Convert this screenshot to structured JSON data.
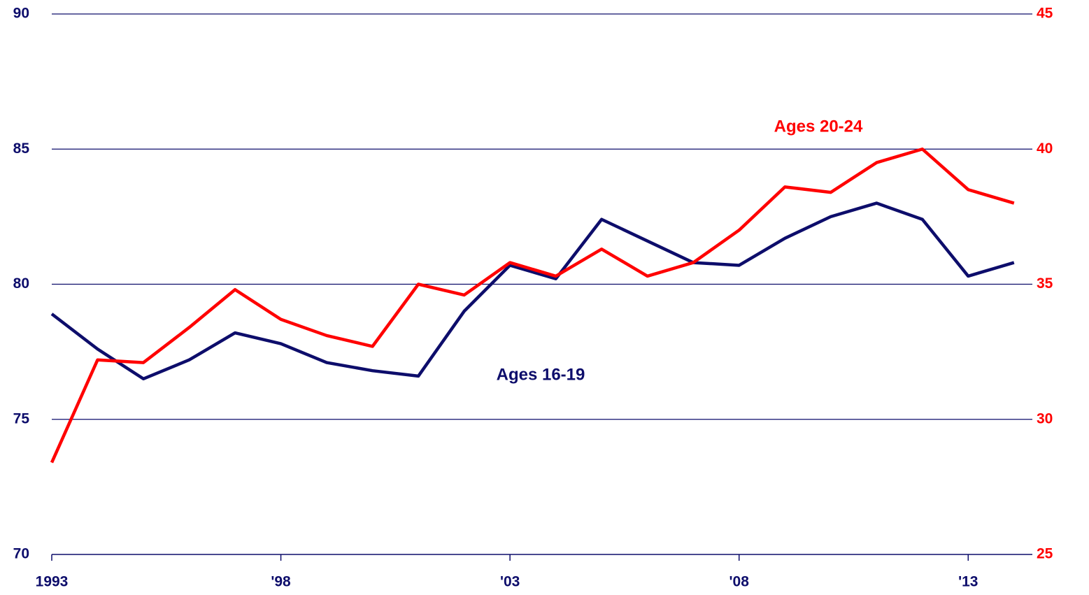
{
  "chart_data": {
    "type": "line",
    "x": [
      1993,
      1994,
      1995,
      1996,
      1997,
      1998,
      1999,
      2000,
      2001,
      2002,
      2003,
      2004,
      2005,
      2006,
      2007,
      2008,
      2009,
      2010,
      2011,
      2012,
      2013,
      2014
    ],
    "xlim": [
      1993,
      2014.4
    ],
    "xticks": [
      1993,
      {
        "value": 1998,
        "label": "'98"
      },
      {
        "value": 2003,
        "label": "'03"
      },
      {
        "value": 2008,
        "label": "'08"
      },
      {
        "value": 2013,
        "label": "'13"
      }
    ],
    "ylim": [
      70,
      90
    ],
    "yticks": [
      70,
      75,
      80,
      85,
      90
    ],
    "y2lim": [
      25,
      45
    ],
    "y2ticks": [
      25,
      30,
      35,
      40,
      45
    ],
    "grid": true,
    "series": [
      {
        "name": "Ages 16-19",
        "color": "#0d0d6b",
        "values": [
          78.9,
          77.6,
          76.5,
          77.2,
          78.2,
          77.8,
          77.1,
          76.8,
          76.6,
          79.0,
          80.7,
          80.2,
          82.4,
          81.6,
          80.8,
          80.7,
          81.7,
          82.5,
          83.0,
          82.4,
          80.3,
          80.8
        ]
      },
      {
        "name": "Ages 20-24",
        "color": "#ff0000",
        "axis": "y2",
        "values": [
          28.4,
          32.2,
          32.1,
          33.4,
          34.8,
          33.7,
          33.1,
          32.7,
          35.0,
          34.6,
          35.8,
          35.3,
          36.3,
          35.3,
          35.8,
          37.0,
          38.6,
          38.4,
          39.5,
          40.0,
          38.5,
          38.0
        ]
      }
    ]
  }
}
